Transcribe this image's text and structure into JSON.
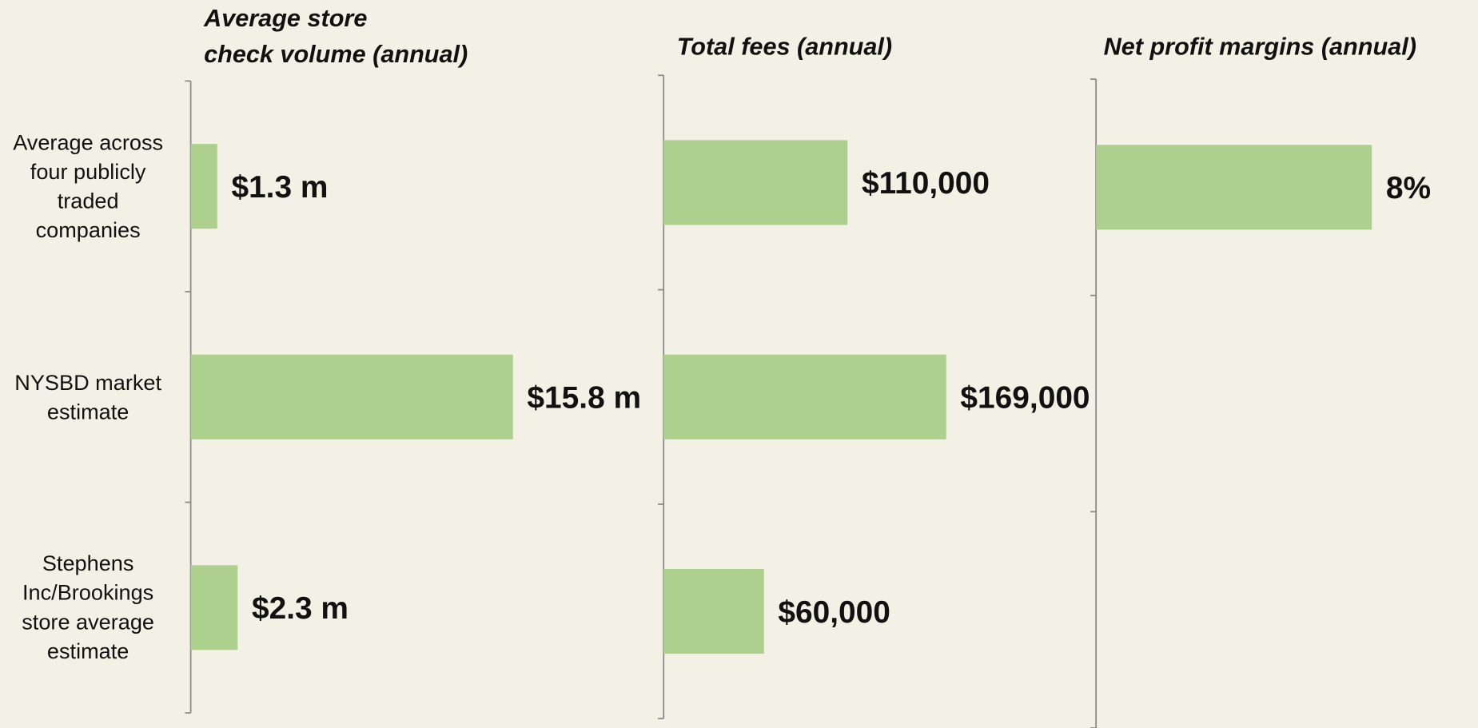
{
  "chart_data": [
    {
      "type": "barh",
      "title": [
        "Average store",
        "check volume (annual)"
      ],
      "categories": [
        "Average across four publicly traded companies",
        "NYSBD market estimate",
        "Stephens Inc/Brookings store average estimate"
      ],
      "values": [
        1.3,
        15.8,
        2.3
      ],
      "value_labels": [
        "$1.3 m",
        "$15.8 m",
        "$2.3 m"
      ],
      "xlim": [
        0,
        20
      ],
      "color": "#aed08e"
    },
    {
      "type": "barh",
      "title": "Total fees (annual)",
      "values": [
        110000,
        169000,
        60000
      ],
      "value_labels": [
        "$110,000",
        "$169,000",
        "$60,000"
      ],
      "xlim": [
        0,
        200000
      ],
      "color": "#aed08e"
    },
    {
      "type": "barh",
      "title": "Net profit margins (annual)",
      "values": [
        8,
        null,
        null
      ],
      "value_labels": [
        "8%",
        null,
        null
      ],
      "xlim": [
        0,
        10
      ],
      "color": "#aed08e"
    }
  ]
}
